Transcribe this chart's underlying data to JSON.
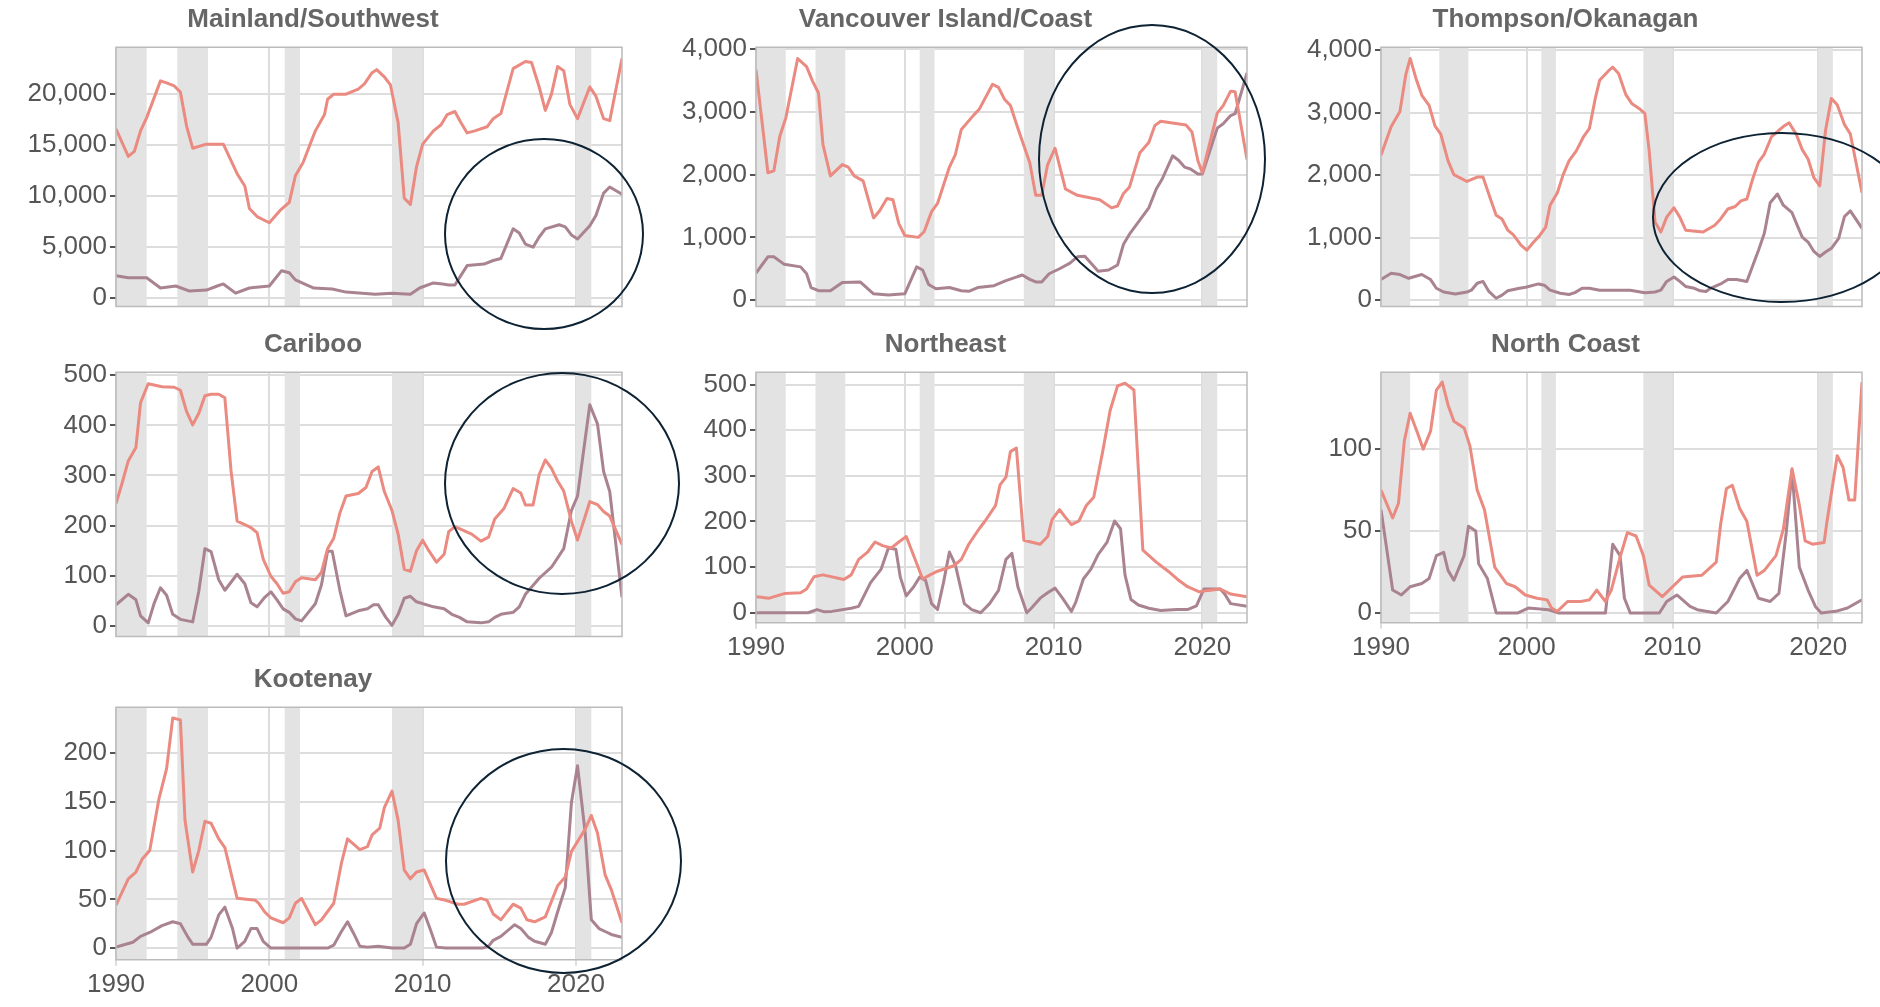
{
  "chart_data": [
    {
      "type": "line",
      "title": "Mainland/Southwest",
      "xlim": [
        1990,
        2023
      ],
      "xticks": [
        1990,
        2000,
        2010,
        2020
      ],
      "ylim": [
        -800,
        24600
      ],
      "yticks": [
        0,
        {
          "value": 5000,
          "label": "5,000"
        },
        {
          "value": 10000,
          "label": "10,000"
        },
        {
          "value": 15000,
          "label": "15,000"
        },
        {
          "value": 20000,
          "label": "20,000"
        }
      ],
      "tick_labels": "y",
      "grid": true,
      "bands": [
        {
          "axis": "x",
          "from": 1990,
          "to": 1992,
          "color": "#e3e3e3"
        },
        {
          "axis": "x",
          "from": 1994,
          "to": 1996,
          "color": "#e3e3e3"
        },
        {
          "axis": "x",
          "from": 2001,
          "to": 2002,
          "color": "#e3e3e3"
        },
        {
          "axis": "x",
          "from": 2008,
          "to": 2010,
          "color": "#e3e3e3"
        },
        {
          "axis": "x",
          "from": 2020,
          "to": 2021,
          "color": "#e3e3e3"
        }
      ],
      "series": [
        {
          "color": "#ea8a80",
          "x": [
            1990,
            1990.8,
            1991.2,
            1991.6,
            1992,
            1992.9,
            1993.3,
            1993.8,
            1994.2,
            1994.6,
            1995,
            1995.9,
            1997,
            1997.9,
            1998.4,
            1998.7,
            1999.2,
            2000,
            2000.7,
            2001.3,
            2001.7,
            2002.2,
            2003,
            2003.6,
            2003.8,
            2004.2,
            2005,
            2005.8,
            2006.2,
            2006.7,
            2007,
            2007.5,
            2007.9,
            2008.4,
            2008.8,
            2009.2,
            2009.6,
            2010,
            2010.7,
            2011.2,
            2011.6,
            2012.1,
            2012.5,
            2012.9,
            2013.4,
            2014.2,
            2014.6,
            2015.1,
            2015.9,
            2016.7,
            2017.1,
            2017.6,
            2018,
            2018.4,
            2018.8,
            2019.2,
            2019.6,
            2020.1,
            2020.9,
            2021.3,
            2021.8,
            2022.2,
            2023
          ],
          "values": [
            16600,
            13900,
            14400,
            16400,
            17700,
            21300,
            21100,
            20800,
            20200,
            16900,
            14700,
            15100,
            15100,
            12200,
            11000,
            8800,
            8000,
            7400,
            8600,
            9400,
            12000,
            13300,
            16400,
            18000,
            19500,
            20000,
            20000,
            20500,
            21000,
            22100,
            22400,
            21700,
            20900,
            17200,
            9800,
            9200,
            12900,
            15100,
            16400,
            17000,
            18000,
            18300,
            17200,
            16200,
            16400,
            16800,
            17600,
            18100,
            22500,
            23200,
            23100,
            20700,
            18400,
            20000,
            22700,
            22300,
            19000,
            17600,
            20700,
            19800,
            17600,
            17400,
            23500
          ]
        },
        {
          "color": "#a98390",
          "x": [
            1990,
            1990.8,
            1992,
            1992.9,
            1993.9,
            1994.8,
            1995.9,
            1996.6,
            1997,
            1997.8,
            1998.7,
            2000,
            2000.8,
            2001.3,
            2001.7,
            2002.9,
            2004.1,
            2005,
            2006.9,
            2008,
            2009.2,
            2009.8,
            2010.7,
            2011.3,
            2011.7,
            2012.1,
            2012.9,
            2014,
            2014.6,
            2015.1,
            2015.9,
            2016.3,
            2016.7,
            2017.2,
            2017.6,
            2018,
            2018.9,
            2019.3,
            2019.7,
            2020.1,
            2020.9,
            2021.3,
            2021.8,
            2022.2,
            2023
          ],
          "values": [
            2200,
            2000,
            2000,
            1000,
            1200,
            700,
            800,
            1200,
            1400,
            500,
            1000,
            1200,
            2700,
            2500,
            1800,
            1000,
            900,
            600,
            400,
            500,
            400,
            1000,
            1500,
            1400,
            1300,
            1300,
            3200,
            3350,
            3700,
            3900,
            6800,
            6400,
            5300,
            5000,
            6000,
            6800,
            7200,
            7000,
            6200,
            5800,
            7100,
            8100,
            10300,
            10900,
            10200
          ]
        }
      ]
    },
    {
      "type": "line",
      "title": "Vancouver Island/Coast",
      "xlim": [
        1990,
        2023
      ],
      "xticks": [
        1990,
        2000,
        2010,
        2020
      ],
      "ylim": [
        -100,
        4030
      ],
      "yticks": [
        0,
        {
          "value": 1000,
          "label": "1,000"
        },
        {
          "value": 2000,
          "label": "2,000"
        },
        {
          "value": 3000,
          "label": "3,000"
        },
        {
          "value": 4000,
          "label": "4,000"
        }
      ],
      "tick_labels": "y",
      "grid": true,
      "bands": [
        {
          "axis": "x",
          "from": 1990,
          "to": 1992,
          "color": "#e3e3e3"
        },
        {
          "axis": "x",
          "from": 1994,
          "to": 1996,
          "color": "#e3e3e3"
        },
        {
          "axis": "x",
          "from": 2001,
          "to": 2002,
          "color": "#e3e3e3"
        },
        {
          "axis": "x",
          "from": 2008,
          "to": 2010,
          "color": "#e3e3e3"
        },
        {
          "axis": "x",
          "from": 2020,
          "to": 2021,
          "color": "#e3e3e3"
        }
      ],
      "series": [
        {
          "color": "#ea8a80",
          "x": [
            1990,
            1990.8,
            1991.2,
            1991.6,
            1992,
            1992.8,
            1993.4,
            1993.8,
            1994.2,
            1994.5,
            1995,
            1995.8,
            1996.2,
            1996.6,
            1997.2,
            1997.9,
            1998.3,
            1998.8,
            1999.2,
            1999.6,
            2000,
            2000.9,
            2001.3,
            2001.8,
            2002.2,
            2003,
            2003.4,
            2003.8,
            2004.6,
            2005,
            2005.9,
            2006.3,
            2006.7,
            2007.1,
            2007.6,
            2008.4,
            2008.8,
            2009.2,
            2009.6,
            2010.1,
            2010.8,
            2011.6,
            2013.1,
            2013.9,
            2014.3,
            2014.7,
            2015.1,
            2015.8,
            2016.4,
            2016.8,
            2017.2,
            2018.9,
            2019.3,
            2019.7,
            2020,
            2021,
            2021.4,
            2021.9,
            2022.2,
            2023
          ],
          "values": [
            3670,
            2030,
            2060,
            2610,
            2900,
            3850,
            3720,
            3490,
            3300,
            2480,
            1980,
            2160,
            2120,
            1980,
            1900,
            1310,
            1420,
            1620,
            1600,
            1220,
            1030,
            1000,
            1090,
            1410,
            1540,
            2120,
            2320,
            2720,
            2940,
            3040,
            3440,
            3390,
            3200,
            3100,
            2740,
            2190,
            1670,
            1670,
            2160,
            2420,
            1770,
            1670,
            1600,
            1470,
            1500,
            1700,
            1800,
            2350,
            2510,
            2780,
            2850,
            2790,
            2680,
            2220,
            2030,
            2980,
            3100,
            3330,
            3320,
            2240
          ]
        },
        {
          "color": "#a98390",
          "x": [
            1990,
            1990.8,
            1991.2,
            1991.9,
            1993,
            1993.4,
            1993.7,
            1994.2,
            1995,
            1995.8,
            1997,
            1997.9,
            1998.9,
            2000,
            2000.8,
            2001.2,
            2001.6,
            2002.1,
            2003,
            2003.8,
            2004.3,
            2004.9,
            2006,
            2006.8,
            2007.9,
            2008.4,
            2008.8,
            2009.2,
            2009.7,
            2010.4,
            2011.1,
            2011.6,
            2012.1,
            2013,
            2013.7,
            2014.3,
            2014.7,
            2015.1,
            2016.4,
            2016.9,
            2017.3,
            2018,
            2018.4,
            2018.8,
            2019.2,
            2019.7,
            2020,
            2021,
            2021.4,
            2021.9,
            2022.2,
            2023
          ],
          "values": [
            430,
            690,
            690,
            570,
            530,
            420,
            200,
            150,
            150,
            280,
            290,
            100,
            80,
            100,
            530,
            480,
            250,
            180,
            200,
            150,
            140,
            200,
            230,
            310,
            400,
            330,
            290,
            290,
            420,
            500,
            590,
            690,
            700,
            460,
            480,
            560,
            890,
            1050,
            1470,
            1770,
            1930,
            2300,
            2230,
            2120,
            2090,
            2010,
            2010,
            2740,
            2810,
            2940,
            2970,
            3620
          ]
        }
      ]
    },
    {
      "type": "line",
      "title": "Thompson/Okanagan",
      "xlim": [
        1990,
        2023
      ],
      "xticks": [
        1990,
        2000,
        2010,
        2020
      ],
      "ylim": [
        -100,
        4050
      ],
      "yticks": [
        0,
        {
          "value": 1000,
          "label": "1,000"
        },
        {
          "value": 2000,
          "label": "2,000"
        },
        {
          "value": 3000,
          "label": "3,000"
        },
        {
          "value": 4000,
          "label": "4,000"
        }
      ],
      "tick_labels": "y",
      "grid": true,
      "bands": [
        {
          "axis": "x",
          "from": 1990,
          "to": 1992,
          "color": "#e3e3e3"
        },
        {
          "axis": "x",
          "from": 1994,
          "to": 1996,
          "color": "#e3e3e3"
        },
        {
          "axis": "x",
          "from": 2001,
          "to": 2002,
          "color": "#e3e3e3"
        },
        {
          "axis": "x",
          "from": 2008,
          "to": 2010,
          "color": "#e3e3e3"
        },
        {
          "axis": "x",
          "from": 2020,
          "to": 2021,
          "color": "#e3e3e3"
        }
      ],
      "series": [
        {
          "color": "#ea8a80",
          "x": [
            1990,
            1990.7,
            1991.3,
            1991.7,
            1992,
            1992.4,
            1992.8,
            1993.3,
            1993.7,
            1994.1,
            1994.6,
            1995,
            1995.9,
            1996.6,
            1997,
            1997.6,
            1997.9,
            1998.3,
            1998.7,
            1999.1,
            1999.6,
            2000,
            2000.4,
            2000.9,
            2001.3,
            2001.6,
            2002.1,
            2002.5,
            2002.9,
            2003.4,
            2003.9,
            2004.3,
            2004.7,
            2005,
            2005.6,
            2005.9,
            2006.3,
            2006.8,
            2007.2,
            2007.7,
            2008.1,
            2008.4,
            2008.8,
            2009.2,
            2009.6,
            2010.1,
            2010.5,
            2010.9,
            2012.1,
            2012.9,
            2013.3,
            2013.8,
            2014.3,
            2014.7,
            2015.1,
            2015.5,
            2015.9,
            2016.3,
            2016.8,
            2017.2,
            2017.6,
            2018,
            2018.5,
            2018.9,
            2019.3,
            2019.7,
            2020.1,
            2020.5,
            2020.9,
            2021.3,
            2021.8,
            2022.2,
            2023
          ],
          "values": [
            2320,
            2780,
            3020,
            3610,
            3870,
            3550,
            3280,
            3120,
            2790,
            2660,
            2230,
            2010,
            1900,
            1970,
            1970,
            1560,
            1360,
            1300,
            1120,
            1040,
            880,
            800,
            910,
            1040,
            1170,
            1520,
            1720,
            2010,
            2230,
            2390,
            2620,
            2750,
            3230,
            3520,
            3670,
            3730,
            3630,
            3290,
            3150,
            3070,
            2990,
            2390,
            1250,
            1090,
            1330,
            1480,
            1330,
            1120,
            1090,
            1200,
            1300,
            1460,
            1500,
            1590,
            1620,
            1940,
            2210,
            2340,
            2620,
            2700,
            2780,
            2840,
            2650,
            2410,
            2260,
            1960,
            1830,
            2720,
            3230,
            3130,
            2810,
            2660,
            1720
          ]
        },
        {
          "color": "#a98390",
          "x": [
            1990,
            1990.7,
            1991.3,
            1991.9,
            1992.8,
            1993.4,
            1993.8,
            1994.3,
            1995.1,
            1995.9,
            1996.2,
            1996.6,
            1997,
            1997.4,
            1997.9,
            1998.3,
            1998.7,
            1999.5,
            2000,
            2000.8,
            2001.2,
            2001.6,
            2002.3,
            2002.9,
            2003.3,
            2003.8,
            2004.3,
            2005,
            2007.1,
            2008.1,
            2008.8,
            2009.2,
            2009.6,
            2010.1,
            2010.5,
            2010.9,
            2011.5,
            2011.9,
            2012.3,
            2012.6,
            2013.3,
            2013.8,
            2014.4,
            2015.1,
            2015.9,
            2016.3,
            2016.7,
            2017.2,
            2017.6,
            2018.2,
            2018.5,
            2018.9,
            2019.3,
            2019.7,
            2020.1,
            2020.5,
            2020.9,
            2021.4,
            2021.8,
            2022.2,
            2023
          ],
          "values": [
            330,
            430,
            410,
            350,
            410,
            330,
            190,
            130,
            100,
            130,
            160,
            270,
            300,
            140,
            30,
            80,
            150,
            190,
            210,
            260,
            240,
            160,
            110,
            90,
            120,
            190,
            190,
            160,
            160,
            120,
            130,
            160,
            300,
            370,
            300,
            220,
            190,
            150,
            140,
            190,
            260,
            330,
            330,
            300,
            800,
            1070,
            1560,
            1700,
            1520,
            1400,
            1230,
            1010,
            930,
            780,
            700,
            770,
            830,
            990,
            1340,
            1430,
            1150
          ]
        }
      ]
    },
    {
      "type": "line",
      "title": "Cariboo",
      "xlim": [
        1990,
        2023
      ],
      "xticks": [
        1990,
        2000,
        2010,
        2020
      ],
      "ylim": [
        -21,
        506
      ],
      "yticks": [
        0,
        100,
        200,
        300,
        400,
        500
      ],
      "tick_labels": "y",
      "grid": true,
      "bands": [
        {
          "axis": "x",
          "from": 1990,
          "to": 1992,
          "color": "#e3e3e3"
        },
        {
          "axis": "x",
          "from": 1994,
          "to": 1996,
          "color": "#e3e3e3"
        },
        {
          "axis": "x",
          "from": 2001,
          "to": 2002,
          "color": "#e3e3e3"
        },
        {
          "axis": "x",
          "from": 2008,
          "to": 2010,
          "color": "#e3e3e3"
        },
        {
          "axis": "x",
          "from": 2020,
          "to": 2021,
          "color": "#e3e3e3"
        }
      ],
      "series": [
        {
          "color": "#ea8a80",
          "x": [
            1990,
            1990.4,
            1990.8,
            1991.3,
            1991.6,
            1992.1,
            1993,
            1993.8,
            1994.2,
            1994.6,
            1995,
            1995.4,
            1995.8,
            1996.2,
            1996.7,
            1997.1,
            1997.5,
            1997.9,
            1998.4,
            1998.8,
            1999.2,
            1999.6,
            2000.1,
            2000.5,
            2000.9,
            2001.3,
            2001.7,
            2002.1,
            2003,
            2003.4,
            2003.8,
            2004.2,
            2004.6,
            2005,
            2005.8,
            2006.3,
            2006.7,
            2007.1,
            2007.5,
            2008,
            2008.4,
            2008.8,
            2009.2,
            2009.6,
            2010,
            2010.4,
            2010.9,
            2011.4,
            2011.7,
            2012.1,
            2013.2,
            2013.8,
            2014.3,
            2014.7,
            2015.3,
            2015.9,
            2016.4,
            2016.7,
            2017.2,
            2017.6,
            2018,
            2018.4,
            2018.8,
            2019.2,
            2019.7,
            2020.1,
            2020.5,
            2020.9,
            2021.4,
            2021.8,
            2022.2,
            2023
          ],
          "values": [
            244,
            285,
            329,
            356,
            445,
            483,
            477,
            476,
            470,
            428,
            401,
            424,
            459,
            462,
            462,
            455,
            310,
            209,
            202,
            196,
            186,
            133,
            99,
            84,
            65,
            68,
            88,
            96,
            92,
            107,
            154,
            175,
            225,
            259,
            264,
            276,
            308,
            317,
            268,
            230,
            183,
            113,
            109,
            150,
            171,
            150,
            127,
            143,
            188,
            198,
            183,
            169,
            177,
            213,
            234,
            274,
            265,
            241,
            241,
            302,
            331,
            314,
            289,
            269,
            209,
            171,
            209,
            248,
            242,
            228,
            219,
            162
          ]
        },
        {
          "color": "#a98390",
          "x": [
            1990,
            1990.8,
            1991.3,
            1991.6,
            1992.1,
            1992.5,
            1992.9,
            1993.3,
            1993.7,
            1994.2,
            1995,
            1995.4,
            1995.8,
            1996.2,
            1996.7,
            1997.1,
            1997.9,
            1998.4,
            1998.8,
            1999.2,
            1999.7,
            2000.1,
            2000.5,
            2000.9,
            2001.3,
            2001.7,
            2002.1,
            2003,
            2003.4,
            2003.8,
            2004.1,
            2004.6,
            2005,
            2005.8,
            2006.4,
            2006.8,
            2007.1,
            2007.6,
            2008,
            2008.4,
            2008.8,
            2009.2,
            2009.6,
            2010.7,
            2011.4,
            2011.9,
            2012.4,
            2012.9,
            2013.8,
            2014.3,
            2014.7,
            2015.1,
            2015.9,
            2016.3,
            2016.7,
            2017.6,
            2018.4,
            2019.2,
            2019.7,
            2020.1,
            2020.9,
            2021.4,
            2021.8,
            2022.2,
            2023
          ],
          "values": [
            42,
            63,
            52,
            20,
            6,
            46,
            76,
            61,
            23,
            13,
            8,
            69,
            154,
            148,
            92,
            71,
            103,
            84,
            46,
            38,
            57,
            68,
            52,
            34,
            27,
            14,
            10,
            44,
            82,
            149,
            149,
            71,
            20,
            30,
            34,
            42,
            42,
            17,
            1,
            23,
            55,
            59,
            48,
            38,
            34,
            23,
            17,
            8,
            6,
            8,
            17,
            23,
            27,
            38,
            63,
            95,
            117,
            154,
            230,
            259,
            441,
            403,
            308,
            268,
            57
          ]
        }
      ]
    },
    {
      "type": "line",
      "title": "Northeast",
      "xlim": [
        1990,
        2023
      ],
      "xticks": [
        1990,
        2000,
        2010,
        2020
      ],
      "ylim": [
        -22,
        527
      ],
      "yticks": [
        0,
        100,
        200,
        300,
        400,
        500
      ],
      "grid": true,
      "bands": [
        {
          "axis": "x",
          "from": 1990,
          "to": 1992,
          "color": "#e3e3e3"
        },
        {
          "axis": "x",
          "from": 1994,
          "to": 1996,
          "color": "#e3e3e3"
        },
        {
          "axis": "x",
          "from": 2001,
          "to": 2002,
          "color": "#e3e3e3"
        },
        {
          "axis": "x",
          "from": 2008,
          "to": 2010,
          "color": "#e3e3e3"
        },
        {
          "axis": "x",
          "from": 2020,
          "to": 2021,
          "color": "#e3e3e3"
        }
      ],
      "series": [
        {
          "color": "#ea8a80",
          "x": [
            1990,
            1990.9,
            1991.9,
            1993,
            1993.4,
            1993.9,
            1994.5,
            1995.9,
            1996.4,
            1996.9,
            1997.5,
            1998,
            1998.5,
            1999.1,
            1999.6,
            2000.1,
            2000.6,
            2001.2,
            2001.7,
            2002.2,
            2003.3,
            2003.8,
            2004.3,
            2005,
            2005.4,
            2006.1,
            2006.4,
            2006.8,
            2007.1,
            2007.5,
            2008,
            2009.1,
            2009.6,
            2009.9,
            2010.4,
            2010.8,
            2011.2,
            2011.7,
            2012.2,
            2012.7,
            2013.3,
            2013.8,
            2014.3,
            2014.8,
            2015.4,
            2016,
            2016.9,
            2017.7,
            2018.3,
            2019,
            2019.8,
            2020.4,
            2021.2,
            2021.9,
            2023
          ],
          "values": [
            35,
            32,
            42,
            44,
            52,
            79,
            83,
            73,
            83,
            117,
            133,
            155,
            147,
            142,
            155,
            167,
            125,
            74,
            83,
            91,
            103,
            117,
            150,
            184,
            201,
            235,
            280,
            297,
            353,
            361,
            159,
            150,
            167,
            204,
            226,
            209,
            193,
            201,
            235,
            253,
            353,
            443,
            497,
            503,
            488,
            137,
            111,
            91,
            74,
            57,
            46,
            49,
            52,
            41,
            35
          ]
        },
        {
          "color": "#a98390",
          "x": [
            1990,
            1993.5,
            1994.1,
            1994.6,
            1995.1,
            1996.4,
            1996.9,
            1997.7,
            1998.4,
            1998.9,
            1999.4,
            1999.7,
            2000.1,
            2000.6,
            2001,
            2001.4,
            2001.8,
            2002.2,
            2002.6,
            2003,
            2003.4,
            2004,
            2004.5,
            2005.1,
            2005.7,
            2006.3,
            2006.8,
            2007.2,
            2007.6,
            2008.2,
            2008.5,
            2009.1,
            2009.6,
            2010.1,
            2010.6,
            2011.2,
            2011.5,
            2012,
            2012.5,
            2013,
            2013.6,
            2014.1,
            2014.5,
            2014.8,
            2015.2,
            2015.7,
            2016.4,
            2017.2,
            2018.3,
            2019,
            2019.6,
            2020.1,
            2021.2,
            2021.5,
            2021.9,
            2023
          ],
          "values": [
            0,
            0,
            7,
            2,
            3,
            10,
            14,
            66,
            95,
            142,
            139,
            78,
            37,
            57,
            78,
            71,
            20,
            7,
            66,
            133,
            105,
            20,
            7,
            0,
            20,
            49,
            117,
            130,
            57,
            0,
            10,
            32,
            44,
            54,
            32,
            3,
            24,
            74,
            95,
            128,
            155,
            201,
            184,
            83,
            29,
            17,
            10,
            5,
            7,
            7,
            15,
            52,
            52,
            41,
            20,
            14
          ]
        }
      ]
    },
    {
      "type": "line",
      "title": "North Coast",
      "xlim": [
        1990,
        2023
      ],
      "xticks": [
        1990,
        2000,
        2010,
        2020
      ],
      "ylim": [
        -6,
        147
      ],
      "yticks": [
        0,
        50,
        100
      ],
      "grid": true,
      "bands": [
        {
          "axis": "x",
          "from": 1990,
          "to": 1992,
          "color": "#e3e3e3"
        },
        {
          "axis": "x",
          "from": 1994,
          "to": 1996,
          "color": "#e3e3e3"
        },
        {
          "axis": "x",
          "from": 2001,
          "to": 2002,
          "color": "#e3e3e3"
        },
        {
          "axis": "x",
          "from": 2008,
          "to": 2010,
          "color": "#e3e3e3"
        },
        {
          "axis": "x",
          "from": 2020,
          "to": 2021,
          "color": "#e3e3e3"
        }
      ],
      "series": [
        {
          "color": "#ea8a80",
          "x": [
            1990,
            1990.8,
            1991.2,
            1991.6,
            1992,
            1992.5,
            1992.9,
            1993.4,
            1993.8,
            1994.2,
            1994.6,
            1995,
            1995.7,
            1996.1,
            1996.6,
            1997.1,
            1997.8,
            1998.6,
            1999.2,
            1999.9,
            2000.7,
            2001.4,
            2001.7,
            2002.1,
            2002.8,
            2003.7,
            2004.3,
            2004.8,
            2005.4,
            2005.8,
            2006.4,
            2006.9,
            2007.5,
            2008,
            2008.4,
            2009.3,
            2010,
            2010.7,
            2012,
            2013,
            2013.3,
            2013.7,
            2014.1,
            2014.6,
            2015.1,
            2015.8,
            2016.3,
            2017.1,
            2017.6,
            2018.2,
            2018.7,
            2019.1,
            2019.6,
            2020.4,
            2020.6,
            2021.3,
            2021.7,
            2022.1,
            2022.5,
            2023
          ],
          "values": [
            75,
            58,
            67,
            105,
            122,
            110,
            100,
            111,
            136,
            141,
            127,
            117,
            113,
            102,
            75,
            63,
            28,
            18,
            16,
            11,
            9,
            8,
            3,
            1,
            7,
            7,
            8,
            14,
            7,
            14,
            34,
            49,
            47,
            35,
            17,
            10,
            16,
            22,
            23,
            31,
            54,
            76,
            78,
            64,
            56,
            23,
            26,
            35,
            51,
            88,
            66,
            44,
            42,
            43,
            56,
            96,
            89,
            69,
            69,
            141
          ]
        },
        {
          "color": "#a98390",
          "x": [
            1990,
            1990.8,
            1991.4,
            1992,
            1992.8,
            1993.3,
            1993.8,
            1994.3,
            1994.6,
            1995,
            1995.7,
            1996,
            1996.5,
            1996.7,
            1997.3,
            1997.9,
            1999.4,
            2000.1,
            2001.5,
            2002.2,
            2005.4,
            2005.9,
            2006.4,
            2006.7,
            2007.1,
            2009.1,
            2009.6,
            2010.3,
            2011.2,
            2011.7,
            2013,
            2013.8,
            2014.6,
            2015.1,
            2015.9,
            2016.7,
            2017.3,
            2017.8,
            2018.2,
            2018.7,
            2019.3,
            2019.8,
            2020.2,
            2021.2,
            2022,
            2023
          ],
          "values": [
            63,
            14,
            11,
            16,
            18,
            21,
            35,
            37,
            26,
            20,
            35,
            53,
            50,
            30,
            21,
            0,
            0,
            3,
            2,
            0,
            0,
            42,
            35,
            9,
            0,
            0,
            7,
            11,
            4,
            2,
            0,
            7,
            21,
            26,
            9,
            7,
            12,
            49,
            87,
            28,
            14,
            4,
            0,
            1,
            3,
            8
          ]
        }
      ]
    },
    {
      "type": "line",
      "title": "Kootenay",
      "xlim": [
        1990,
        2023
      ],
      "xticks": [
        1990,
        2000,
        2010,
        2020
      ],
      "ylim": [
        -12,
        247
      ],
      "yticks": [
        0,
        50,
        100,
        150,
        200
      ],
      "grid": true,
      "bands": [
        {
          "axis": "x",
          "from": 1990,
          "to": 1992,
          "color": "#e3e3e3"
        },
        {
          "axis": "x",
          "from": 1994,
          "to": 1996,
          "color": "#e3e3e3"
        },
        {
          "axis": "x",
          "from": 2001,
          "to": 2002,
          "color": "#e3e3e3"
        },
        {
          "axis": "x",
          "from": 2008,
          "to": 2010,
          "color": "#e3e3e3"
        },
        {
          "axis": "x",
          "from": 2020,
          "to": 2021,
          "color": "#e3e3e3"
        }
      ],
      "series": [
        {
          "color": "#ea8a80",
          "x": [
            1990,
            1990.8,
            1991.3,
            1991.7,
            1992.2,
            1992.8,
            1993.3,
            1993.7,
            1994.2,
            1994.5,
            1995,
            1995.4,
            1995.8,
            1996.2,
            1996.7,
            1997.1,
            1997.9,
            1999.1,
            1999.3,
            1999.7,
            2000.1,
            2000.9,
            2001.3,
            2001.7,
            2002.1,
            2003,
            2003.4,
            2004.2,
            2004.7,
            2005.1,
            2005.9,
            2006.4,
            2006.7,
            2007.2,
            2007.5,
            2008,
            2008.4,
            2008.8,
            2009.2,
            2009.6,
            2010.1,
            2010.9,
            2011.5,
            2012.3,
            2012.7,
            2013.8,
            2014.2,
            2014.6,
            2015.1,
            2015.9,
            2016.4,
            2016.8,
            2017.3,
            2018,
            2018.3,
            2018.8,
            2019.3,
            2019.7,
            2020.6,
            2021,
            2021.4,
            2021.9,
            2022.3,
            2023
          ],
          "values": [
            44,
            71,
            78,
            91,
            100,
            153,
            184,
            236,
            234,
            131,
            78,
            100,
            130,
            128,
            112,
            103,
            51,
            49,
            46,
            37,
            31,
            26,
            31,
            46,
            51,
            24,
            29,
            46,
            87,
            112,
            101,
            104,
            116,
            123,
            144,
            161,
            131,
            80,
            71,
            78,
            80,
            51,
            49,
            45,
            45,
            51,
            49,
            35,
            29,
            45,
            41,
            29,
            27,
            32,
            44,
            64,
            73,
            99,
            122,
            136,
            118,
            75,
            60,
            26
          ]
        },
        {
          "color": "#a98390",
          "x": [
            1990,
            1991.1,
            1991.6,
            1992.2,
            1993,
            1993.7,
            1994.2,
            1994.7,
            1995,
            1995.9,
            1996.2,
            1996.7,
            1997.1,
            1997.6,
            1997.9,
            1998.4,
            1998.8,
            1999.2,
            1999.6,
            2000.1,
            2003.8,
            2004.2,
            2004.7,
            2005.1,
            2005.5,
            2005.9,
            2006.4,
            2007.1,
            2008,
            2008.8,
            2009.2,
            2009.6,
            2010.1,
            2010.5,
            2010.9,
            2011.5,
            2013.9,
            2014.3,
            2014.6,
            2015.1,
            2016,
            2016.4,
            2016.9,
            2017.3,
            2018,
            2018.4,
            2018.8,
            2019.3,
            2019.7,
            2020.1,
            2020.6,
            2021,
            2021.5,
            2021.9,
            2022.3,
            2023
          ],
          "values": [
            1,
            6,
            12,
            16,
            23,
            27,
            25,
            11,
            4,
            4,
            11,
            34,
            42,
            20,
            0,
            7,
            20,
            20,
            7,
            0,
            0,
            3,
            17,
            27,
            15,
            2,
            1,
            2,
            0,
            0,
            4,
            25,
            36,
            19,
            1,
            0,
            0,
            2,
            8,
            12,
            24,
            20,
            11,
            7,
            4,
            16,
            37,
            62,
            149,
            187,
            118,
            29,
            20,
            17,
            14,
            11
          ]
        }
      ]
    }
  ]
}
